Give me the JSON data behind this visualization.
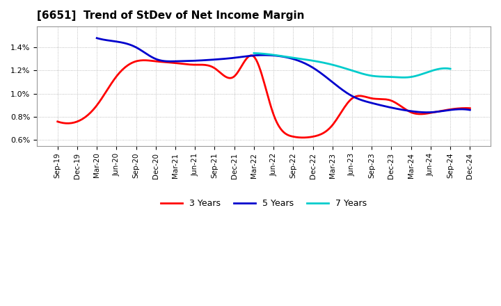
{
  "title": "[6651]  Trend of StDev of Net Income Margin",
  "x_labels": [
    "Sep-19",
    "Dec-19",
    "Mar-20",
    "Jun-20",
    "Sep-20",
    "Dec-20",
    "Mar-21",
    "Jun-21",
    "Sep-21",
    "Dec-21",
    "Mar-22",
    "Jun-22",
    "Sep-22",
    "Dec-22",
    "Mar-23",
    "Jun-23",
    "Sep-23",
    "Dec-23",
    "Mar-24",
    "Jun-24",
    "Sep-24",
    "Dec-24"
  ],
  "y_ticks": [
    0.006,
    0.008,
    0.01,
    0.012,
    0.014
  ],
  "y_tick_labels": [
    "0.6%",
    "0.8%",
    "1.0%",
    "1.2%",
    "1.4%"
  ],
  "ylim": [
    0.0055,
    0.0158
  ],
  "series": {
    "3 Years": {
      "color": "#FF0000",
      "linewidth": 2.0,
      "values": [
        0.0076,
        0.0076,
        0.009,
        0.0115,
        0.0128,
        0.0128,
        0.01265,
        0.0125,
        0.0122,
        0.0115,
        0.0132,
        0.0082,
        0.0063,
        0.0063,
        0.0073,
        0.0096,
        0.0096,
        0.0094,
        0.0084,
        0.00835,
        0.00865,
        0.00875
      ]
    },
    "5 Years": {
      "color": "#0000CD",
      "linewidth": 2.0,
      "values": [
        null,
        null,
        0.0148,
        0.0145,
        0.014,
        0.013,
        0.0128,
        0.01285,
        0.01295,
        0.0131,
        0.0133,
        0.0133,
        0.013,
        0.01225,
        0.011,
        0.0098,
        0.0092,
        0.0088,
        0.0085,
        0.0084,
        0.0086,
        0.0086
      ]
    },
    "7 Years": {
      "color": "#00CCCC",
      "linewidth": 2.0,
      "values": [
        null,
        null,
        null,
        null,
        null,
        null,
        null,
        null,
        null,
        null,
        0.0135,
        0.01335,
        0.0131,
        0.01285,
        0.0125,
        0.012,
        0.01155,
        0.01145,
        0.01145,
        0.01195,
        0.01215,
        null
      ]
    },
    "10 Years": {
      "color": "#008000",
      "linewidth": 2.0,
      "values": [
        null,
        null,
        null,
        null,
        null,
        null,
        null,
        null,
        null,
        null,
        null,
        null,
        null,
        null,
        null,
        null,
        null,
        null,
        null,
        null,
        null,
        null
      ]
    }
  },
  "legend_loc": "lower center",
  "background_color": "#FFFFFF",
  "plot_bg_color": "#FFFFFF",
  "grid_color": "#AAAAAA",
  "grid_linestyle": ":"
}
